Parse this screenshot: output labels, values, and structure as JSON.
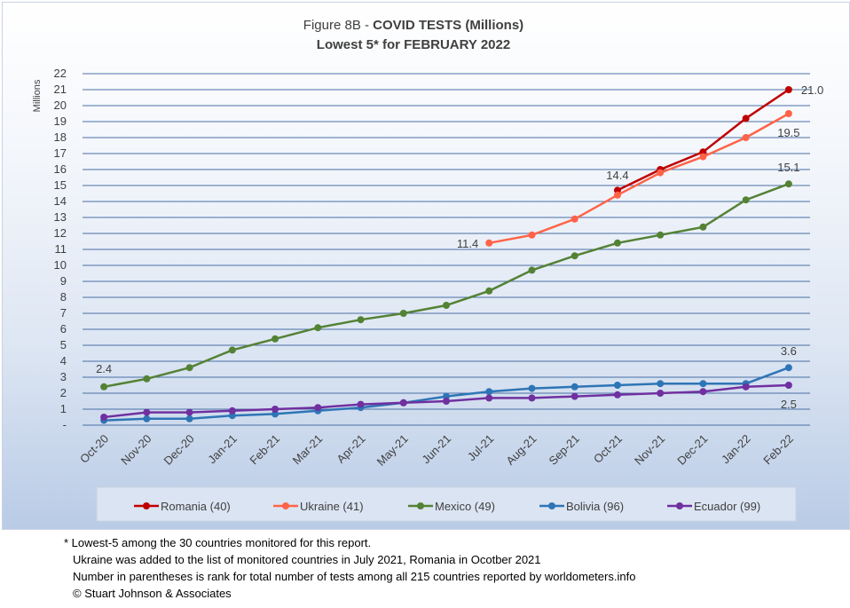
{
  "chart_data": {
    "type": "line",
    "title_prefix": "Figure 8B - ",
    "title_bold": "COVID TESTS (Millions)",
    "subtitle": "Lowest 5* for FEBRUARY 2022",
    "ylabel": "Millions",
    "ylim": [
      0,
      22
    ],
    "y_ticks": [
      "-",
      "1",
      "2",
      "3",
      "4",
      "5",
      "6",
      "7",
      "8",
      "9",
      "10",
      "11",
      "12",
      "13",
      "14",
      "15",
      "16",
      "17",
      "18",
      "19",
      "20",
      "21",
      "22"
    ],
    "categories": [
      "Oct-20",
      "Nov-20",
      "Dec-20",
      "Jan-21",
      "Feb-21",
      "Mar-21",
      "Apr-21",
      "May-21",
      "Jun-21",
      "Jul-21",
      "Aug-21",
      "Sep-21",
      "Oct-21",
      "Nov-21",
      "Dec-21",
      "Jan-22",
      "Feb-22"
    ],
    "grid": true,
    "legend_position": "bottom",
    "series": [
      {
        "name": "Romania (40)",
        "color": "#C00000",
        "values": [
          null,
          null,
          null,
          null,
          null,
          null,
          null,
          null,
          null,
          null,
          null,
          null,
          14.7,
          16.0,
          17.1,
          19.2,
          21.0
        ]
      },
      {
        "name": "Ukraine (41)",
        "color": "#FF6347",
        "values": [
          null,
          null,
          null,
          null,
          null,
          null,
          null,
          null,
          null,
          11.4,
          11.9,
          12.9,
          14.4,
          15.8,
          16.8,
          18.0,
          19.5
        ]
      },
      {
        "name": "Mexico (49)",
        "color": "#548235",
        "values": [
          2.4,
          2.9,
          3.6,
          4.7,
          5.4,
          6.1,
          6.6,
          7.0,
          7.5,
          8.4,
          9.7,
          10.6,
          11.4,
          11.9,
          12.4,
          14.1,
          15.1
        ]
      },
      {
        "name": "Bolivia (96)",
        "color": "#2E75B6",
        "values": [
          0.3,
          0.4,
          0.4,
          0.6,
          0.7,
          0.9,
          1.1,
          1.4,
          1.8,
          2.1,
          2.3,
          2.4,
          2.5,
          2.6,
          2.6,
          2.6,
          3.6
        ]
      },
      {
        "name": "Ecuador (99)",
        "color": "#7030A0",
        "values": [
          0.5,
          0.8,
          0.8,
          0.9,
          1.0,
          1.1,
          1.3,
          1.4,
          1.5,
          1.7,
          1.7,
          1.8,
          1.9,
          2.0,
          2.1,
          2.4,
          2.5
        ]
      }
    ],
    "data_labels": [
      {
        "series": "Romania (40)",
        "category": "Feb-22",
        "text": "21.0"
      },
      {
        "series": "Ukraine (41)",
        "category": "Feb-22",
        "text": "19.5"
      },
      {
        "series": "Ukraine (41)",
        "category": "Jul-21",
        "text": "11.4"
      },
      {
        "series": "Ukraine (41)",
        "category": "Oct-21",
        "text": "14.4"
      },
      {
        "series": "Mexico (49)",
        "category": "Feb-22",
        "text": "15.1"
      },
      {
        "series": "Mexico (49)",
        "category": "Oct-20",
        "text": "2.4"
      },
      {
        "series": "Bolivia (96)",
        "category": "Feb-22",
        "text": "3.6"
      },
      {
        "series": "Ecuador (99)",
        "category": "Feb-22",
        "text": "2.5"
      }
    ]
  },
  "footnotes": {
    "line1": "* Lowest-5 among the 30 countries monitored for this report.",
    "line2": "Ukraine was added to the list of monitored countries in July 2021, Romania in Ocotber 2021",
    "line3": "Number in parentheses is rank for total number of tests among all 215 countries reported by worldometers.info",
    "line4": "© Stuart Johnson & Associates"
  }
}
